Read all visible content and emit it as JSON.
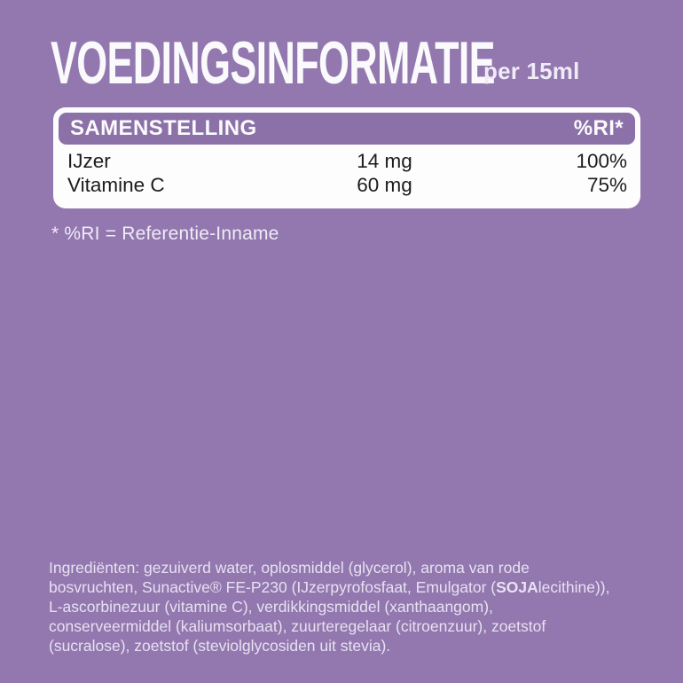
{
  "colors": {
    "background": "#9278AF",
    "table_header_purple": "#8B71A8",
    "card_background": "#FDFDFE",
    "title_color": "#FAF9FC",
    "light_text": "#F0EBF7",
    "ingredients_color": "#E8E1F1",
    "row_text_color": "#1C1C1E"
  },
  "header": {
    "title": "VOEDINGSINFORMATIE",
    "serving": "per 15ml"
  },
  "table": {
    "header": {
      "left": "SAMENSTELLING",
      "right": "%RI*"
    },
    "rows": [
      {
        "name": "IJzer",
        "amount": "14 mg",
        "ri": "100%"
      },
      {
        "name": "Vitamine C",
        "amount": "60 mg",
        "ri": "75%"
      }
    ]
  },
  "footnote": "* %RI = Referentie-Inname",
  "ingredients": {
    "part1": "Ingrediënten: gezuiverd water, oplosmiddel (glycerol), aroma van rode\nbosvruchten, Sunactive® FE-P230 (IJzerpyrofosfaat, Emulgator (",
    "bold": "SOJA",
    "part2": "lecithine)),\nL-ascorbinezuur (vitamine C), verdikkingsmiddel (xanthaangom),\nconserveermiddel (kaliumsorbaat), zuurteregelaar (citroenzuur), zoetstof\n(sucralose), zoetstof (steviolglycosiden uit stevia)."
  }
}
